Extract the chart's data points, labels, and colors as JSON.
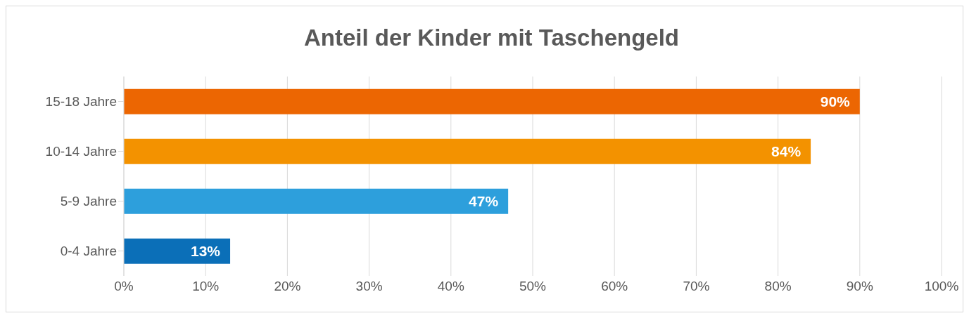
{
  "chart_data": {
    "type": "bar",
    "orientation": "horizontal",
    "title": "Anteil der Kinder mit Taschengeld",
    "categories": [
      "15-18 Jahre",
      "10-14 Jahre",
      "5-9 Jahre",
      "0-4 Jahre"
    ],
    "values": [
      90,
      84,
      47,
      13
    ],
    "colors": [
      "#ec6602",
      "#f39200",
      "#2d9fdc",
      "#0b6fb8"
    ],
    "value_labels": [
      "90%",
      "84%",
      "47%",
      "13%"
    ],
    "xlim": [
      0,
      100
    ],
    "xticks": [
      {
        "value": 0,
        "label": "0%"
      },
      {
        "value": 10,
        "label": "10%"
      },
      {
        "value": 20,
        "label": "20%"
      },
      {
        "value": 30,
        "label": "30%"
      },
      {
        "value": 40,
        "label": "40%"
      },
      {
        "value": 50,
        "label": "50%"
      },
      {
        "value": 60,
        "label": "60%"
      },
      {
        "value": 70,
        "label": "70%"
      },
      {
        "value": 80,
        "label": "80%"
      },
      {
        "value": 90,
        "label": "90%"
      },
      {
        "value": 100,
        "label": "100%"
      }
    ],
    "grid": "x",
    "legend": false
  }
}
